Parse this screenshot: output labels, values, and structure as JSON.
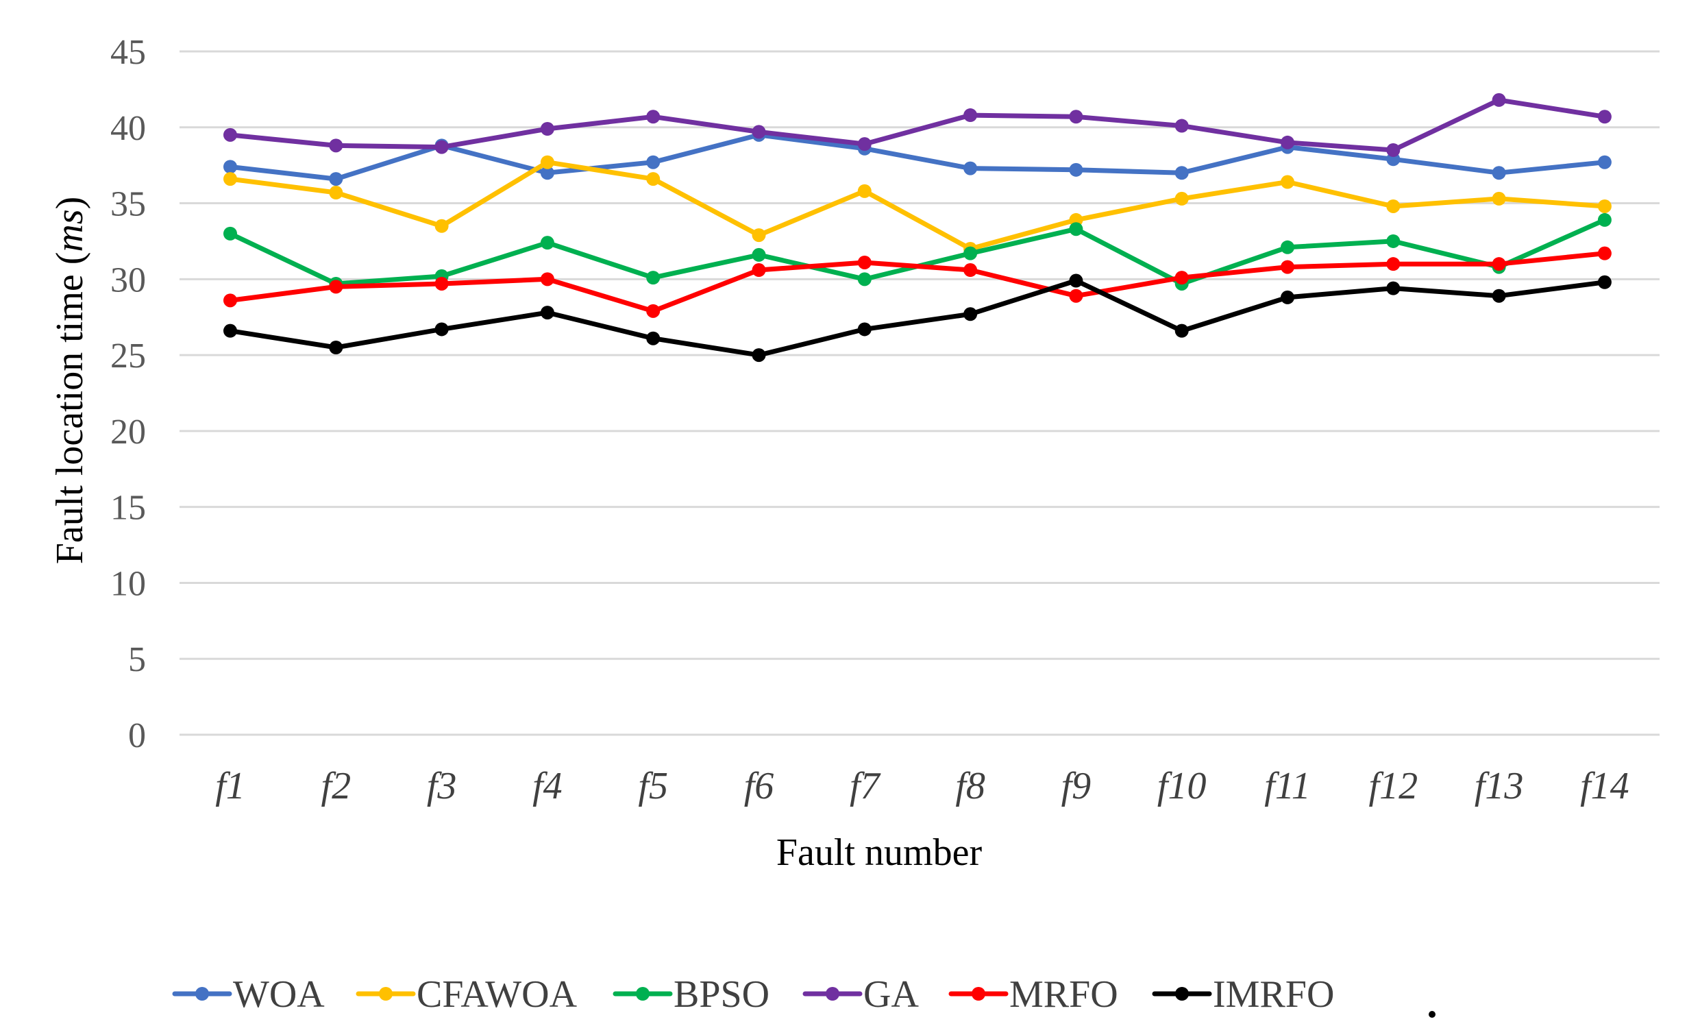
{
  "chart_data": {
    "type": "line",
    "title": "",
    "xlabel": "Fault number",
    "ylabel_prefix": "Fault location time (",
    "ylabel_unit": "ms",
    "ylabel_suffix": ")",
    "ylim": [
      0,
      45
    ],
    "yticks": [
      0,
      5,
      10,
      15,
      20,
      25,
      30,
      35,
      40,
      45
    ],
    "grid": true,
    "legend_position": "bottom",
    "categories": [
      "f1",
      "f2",
      "f3",
      "f4",
      "f5",
      "f6",
      "f7",
      "f8",
      "f9",
      "f10",
      "f11",
      "f12",
      "f13",
      "f14"
    ],
    "series": [
      {
        "name": "WOA",
        "color": "#4472C4",
        "values": [
          37.4,
          36.6,
          38.8,
          37.0,
          37.7,
          39.5,
          38.6,
          37.3,
          37.2,
          37.0,
          38.7,
          37.9,
          37.0,
          37.7
        ]
      },
      {
        "name": "CFAWOA",
        "color": "#FFC000",
        "values": [
          36.6,
          35.7,
          33.5,
          37.7,
          36.6,
          32.9,
          35.8,
          32.0,
          33.9,
          35.3,
          36.4,
          34.8,
          35.3,
          34.8
        ]
      },
      {
        "name": "BPSO",
        "color": "#00B050",
        "values": [
          33.0,
          29.7,
          30.2,
          32.4,
          30.1,
          31.6,
          30.0,
          31.7,
          33.3,
          29.7,
          32.1,
          32.5,
          30.8,
          33.9
        ]
      },
      {
        "name": "GA",
        "color": "#7030A0",
        "values": [
          39.5,
          38.8,
          38.7,
          39.9,
          40.7,
          39.7,
          38.9,
          40.8,
          40.7,
          40.1,
          39.0,
          38.5,
          41.8,
          40.7
        ]
      },
      {
        "name": "MRFO",
        "color": "#FF0000",
        "values": [
          28.6,
          29.5,
          29.7,
          30.0,
          27.9,
          30.6,
          31.1,
          30.6,
          28.9,
          30.1,
          30.8,
          31.0,
          31.0,
          31.7
        ]
      },
      {
        "name": "IMRFO",
        "color": "#000000",
        "values": [
          26.6,
          25.5,
          26.7,
          27.8,
          26.1,
          25.0,
          26.7,
          27.7,
          29.9,
          26.6,
          28.8,
          29.4,
          28.9,
          29.8
        ]
      }
    ]
  }
}
